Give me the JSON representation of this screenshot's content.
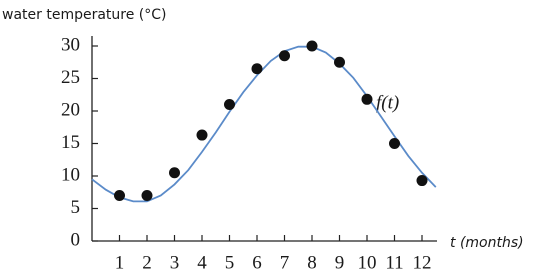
{
  "chart_data": {
    "type": "scatter",
    "y_label": "water temperature (°C)",
    "x_label": "t (months)",
    "annotation": "f(t)",
    "x": [
      1,
      2,
      3,
      4,
      5,
      6,
      7,
      8,
      9,
      10,
      11,
      12
    ],
    "values": [
      7,
      7,
      10.5,
      16.3,
      21,
      26.5,
      28.5,
      30,
      27.5,
      21.8,
      15,
      9.3
    ],
    "color": "#111111",
    "curve": {
      "x": [
        0,
        0.5,
        1,
        1.5,
        2,
        2.5,
        3,
        3.5,
        4,
        4.5,
        5,
        5.5,
        6,
        6.5,
        7,
        7.5,
        8,
        8.5,
        9,
        9.5,
        10,
        10.5,
        11,
        11.5,
        12,
        12.5
      ],
      "values": [
        9.5,
        7.9,
        6.7,
        6.1,
        6.1,
        7,
        8.7,
        10.9,
        13.7,
        16.7,
        19.9,
        22.9,
        25.5,
        27.7,
        29.2,
        29.9,
        29.9,
        29,
        27.3,
        25.1,
        22.3,
        19.2,
        16.1,
        13.1,
        10.5,
        8.3
      ],
      "color": "#5b8bc9"
    },
    "xlim": [
      0,
      12.5
    ],
    "ylim": [
      0,
      31
    ],
    "xticks": [
      1,
      2,
      3,
      4,
      5,
      6,
      7,
      8,
      9,
      10,
      11,
      12
    ],
    "yticks": [
      0,
      5,
      10,
      15,
      20,
      25,
      30
    ]
  }
}
